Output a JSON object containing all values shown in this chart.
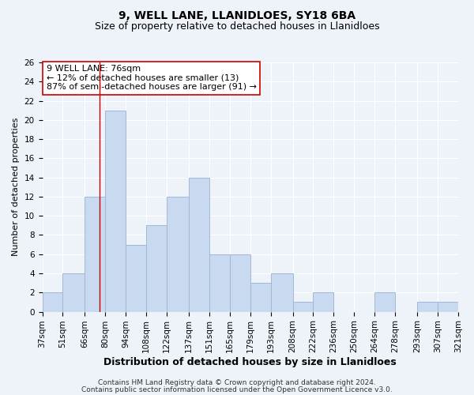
{
  "title": "9, WELL LANE, LLANIDLOES, SY18 6BA",
  "subtitle": "Size of property relative to detached houses in Llanidloes",
  "xlabel": "Distribution of detached houses by size in Llanidloes",
  "ylabel": "Number of detached properties",
  "bin_edges": [
    37,
    51,
    66,
    80,
    94,
    108,
    122,
    137,
    151,
    165,
    179,
    193,
    208,
    222,
    236,
    250,
    264,
    278,
    293,
    307,
    321
  ],
  "bar_heights": [
    2,
    4,
    12,
    21,
    7,
    9,
    12,
    14,
    6,
    6,
    3,
    4,
    1,
    2,
    0,
    0,
    2,
    0,
    1,
    1
  ],
  "bar_color": "#c9d9f0",
  "bar_edgecolor": "#a0b8d8",
  "marker_value": 76,
  "marker_color": "#cc0000",
  "ylim": [
    0,
    26
  ],
  "yticks": [
    0,
    2,
    4,
    6,
    8,
    10,
    12,
    14,
    16,
    18,
    20,
    22,
    24,
    26
  ],
  "xtick_labels": [
    "37sqm",
    "51sqm",
    "66sqm",
    "80sqm",
    "94sqm",
    "108sqm",
    "122sqm",
    "137sqm",
    "151sqm",
    "165sqm",
    "179sqm",
    "193sqm",
    "208sqm",
    "222sqm",
    "236sqm",
    "250sqm",
    "264sqm",
    "278sqm",
    "293sqm",
    "307sqm",
    "321sqm"
  ],
  "annotation_text": "9 WELL LANE: 76sqm\n← 12% of detached houses are smaller (13)\n87% of semi-detached houses are larger (91) →",
  "annotation_box_edgecolor": "#cc0000",
  "annotation_box_facecolor": "#ffffff",
  "footnote1": "Contains HM Land Registry data © Crown copyright and database right 2024.",
  "footnote2": "Contains public sector information licensed under the Open Government Licence v3.0.",
  "background_color": "#eef2f9",
  "grid_color": "#ffffff",
  "title_fontsize": 10,
  "subtitle_fontsize": 9,
  "xlabel_fontsize": 9,
  "ylabel_fontsize": 8,
  "tick_fontsize": 7.5,
  "annotation_fontsize": 8,
  "footnote_fontsize": 6.5
}
